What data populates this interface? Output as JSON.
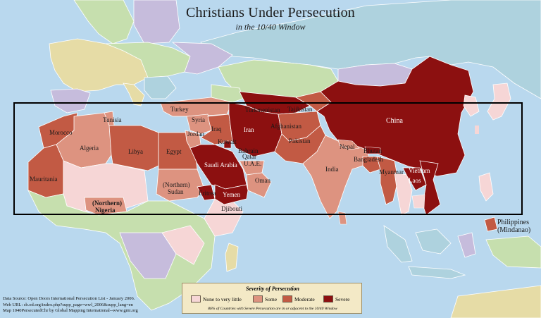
{
  "title": "Christians Under Persecution",
  "subtitle": "in the 10/40 Window",
  "window_label": "10/40 Window",
  "colors": {
    "ocean": "#b9d8ee",
    "none": "#f6d6d6",
    "some": "#dd9380",
    "moderate": "#c25a44",
    "severe": "#8c1010",
    "other_green": "#c6dfae",
    "other_purple": "#c6bcdc",
    "other_blue": "#aed2de",
    "other_tan": "#e6dca6"
  },
  "legend": {
    "title": "Severity of Persecution",
    "items": [
      {
        "label": "None to very little",
        "color": "#f6d6d6"
      },
      {
        "label": "Some",
        "color": "#dd9380"
      },
      {
        "label": "Moderate",
        "color": "#c25a44"
      },
      {
        "label": "Severe",
        "color": "#8c1010"
      }
    ],
    "note": "86% of Countries with Severe Persecution are in or adjacent to the 10/40 Window"
  },
  "source": {
    "line1": "Data Source:  Open Doors International Persecution List - January 2006.",
    "line2": "Web URL:  sb.od.org/index.php?supp_page=wwl_2006&supp_lang=en",
    "line3": "Map 1040PersecutedChr by Global Mapping International--www.gmi.org"
  },
  "countries": {
    "morocco": "Morocco",
    "tunisia": "Tunisia",
    "algeria": "Algeria",
    "libya": "Libya",
    "egypt": "Egypt",
    "mauritania": "Mauritania",
    "nigeria_1": "(Northern)",
    "nigeria_2": "Nigeria",
    "sudan_1": "(Northern)",
    "sudan_2": "Sudan",
    "eritrea": "Eritrea",
    "djibouti": "Djibouti",
    "turkey": "Turkey",
    "syria": "Syria",
    "jordan": "Jordan",
    "iraq": "Iraq",
    "iran": "Iran",
    "kuwait": "Kuwait",
    "bahrain": "Bahrain",
    "qatar": "Qatar",
    "uae": "U.A.E.",
    "saudi_arabia": "Saudi Arabia",
    "oman": "Oman",
    "yemen": "Yemen",
    "turkmenistan": "Turkmenistan",
    "tajikistan": "Tajikistan",
    "afghanistan": "Afghanistan",
    "pakistan": "Pakistan",
    "india": "India",
    "nepal": "Nepal",
    "bhutan": "Bhutan",
    "bangladesh": "Bangladesh",
    "myanmar": "Myanmar",
    "vietnam": "Vietnam",
    "laos": "Laos",
    "china": "China",
    "philippines_1": "Philippines",
    "philippines_2": "(Mindanao)"
  }
}
